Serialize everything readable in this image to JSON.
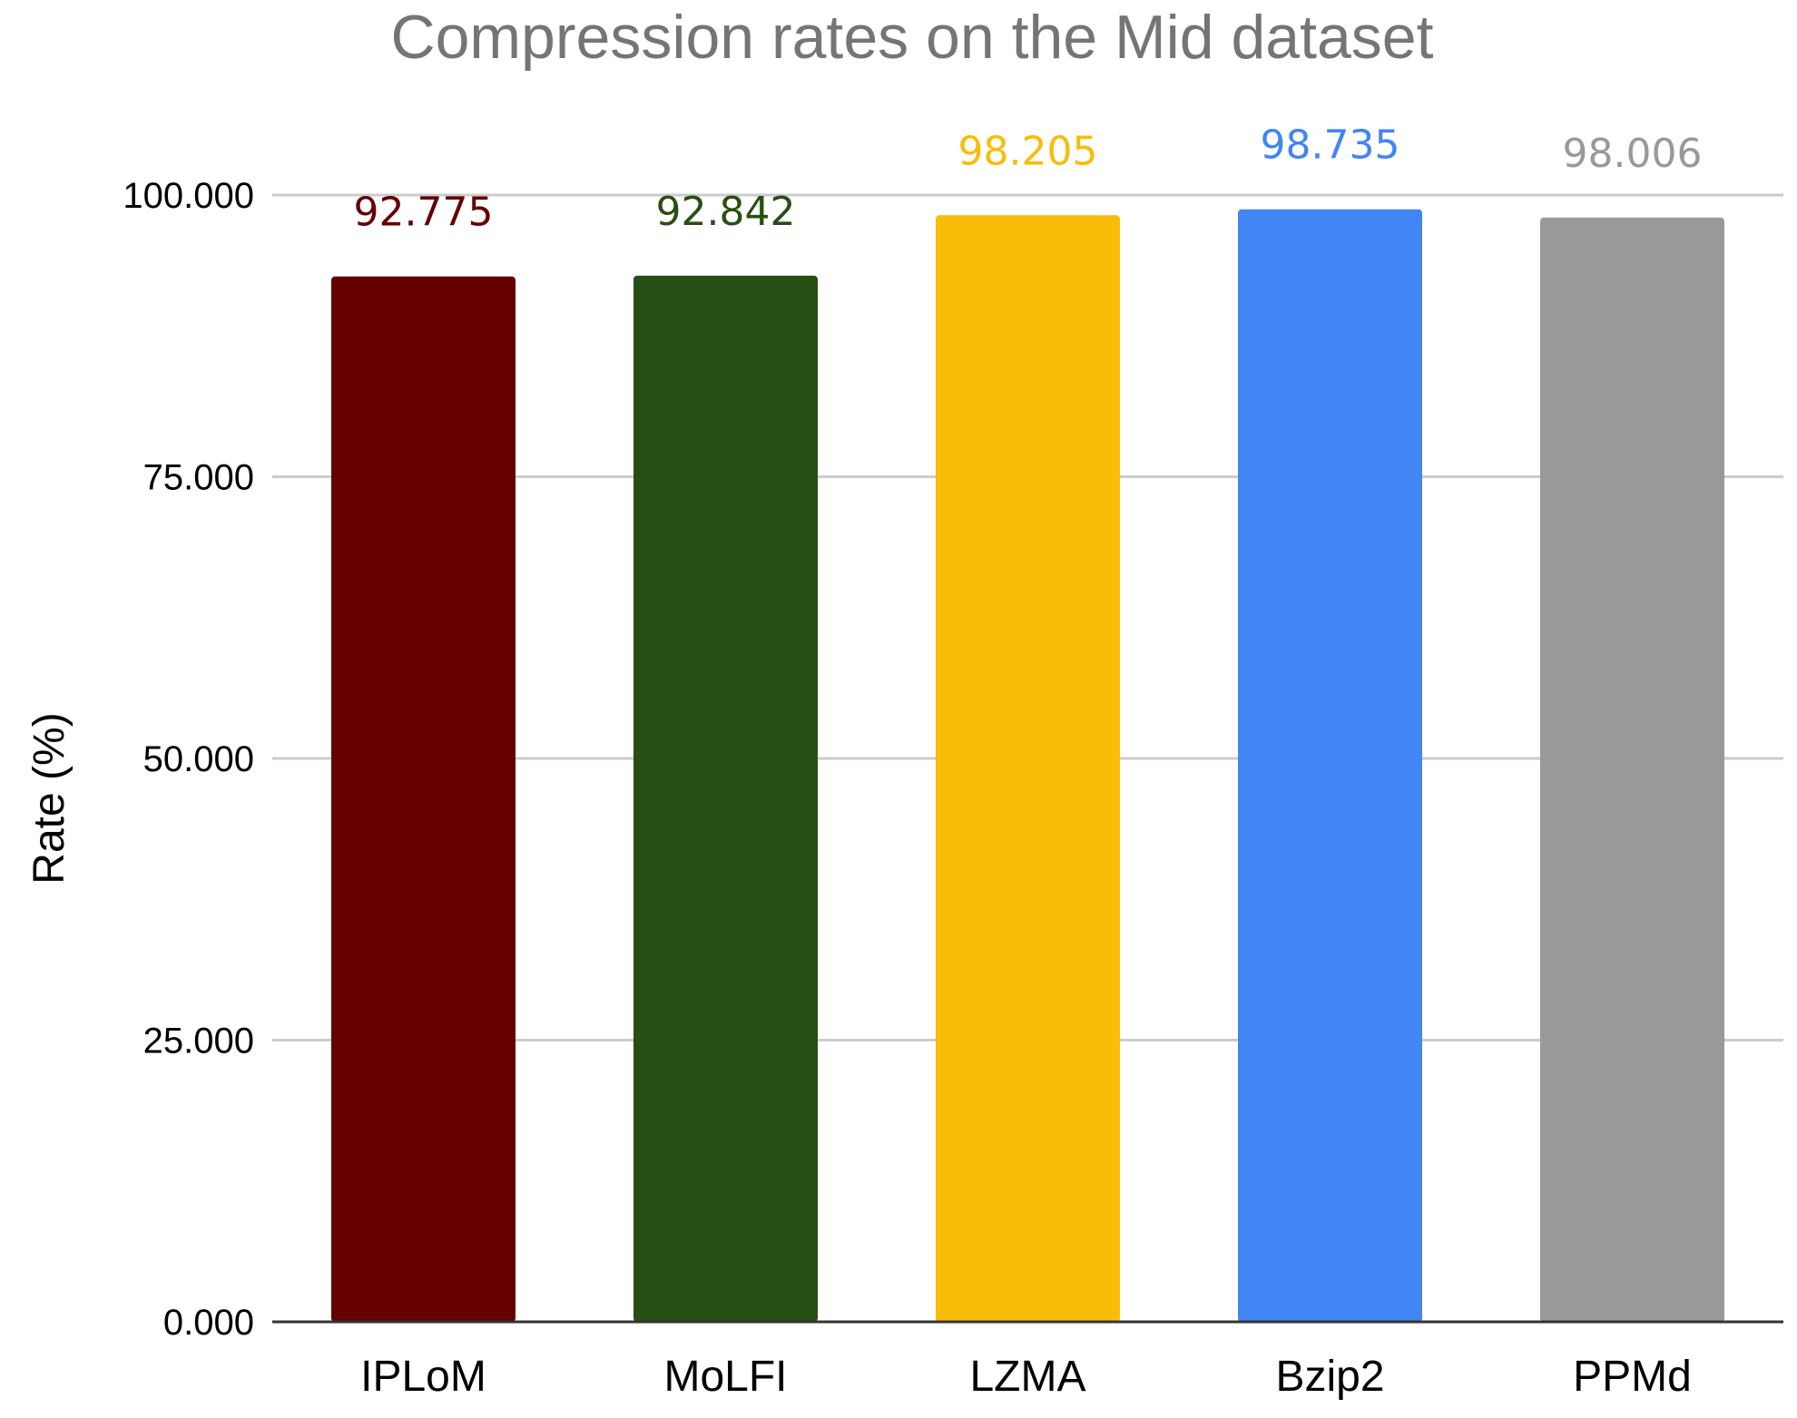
{
  "chart_data": {
    "type": "bar",
    "title": "Compression rates on the Mid dataset",
    "xlabel": "",
    "ylabel": "Rate (%)",
    "categories": [
      "IPLoM",
      "MoLFI",
      "LZMA",
      "Bzip2",
      "PPMd"
    ],
    "values": [
      92.775,
      92.842,
      98.205,
      98.735,
      98.006
    ],
    "value_labels": [
      "92.775",
      "92.842",
      "98.205",
      "98.735",
      "98.006"
    ],
    "colors": [
      "#660000",
      "#274e13",
      "#f9bc09",
      "#4285f4",
      "#999999"
    ],
    "ylim": [
      0,
      100
    ],
    "yticks": [
      0,
      25,
      50,
      75,
      100
    ],
    "ytick_labels": [
      "0.000",
      "25.000",
      "50.000",
      "75.000",
      "100.000"
    ],
    "grid": true,
    "legend": "none"
  }
}
